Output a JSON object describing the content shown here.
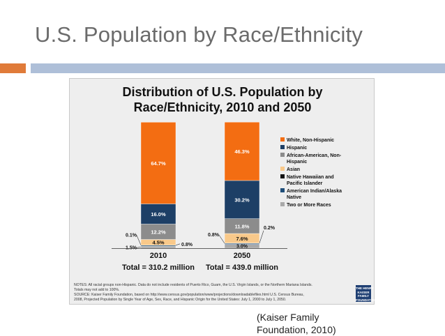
{
  "slide": {
    "title": "U.S. Population by Race/Ethnicity",
    "caption_line1": "(Kaiser Family",
    "caption_line2": "Foundation, 2010)"
  },
  "colors": {
    "title_gray": "#6b6b6b",
    "accent_orange": "#e07b39",
    "accent_blue": "#aebfd8"
  },
  "chart_data": {
    "type": "bar",
    "stacked": true,
    "title_line1": "Distribution of U.S. Population by",
    "title_line2": "Race/Ethnicity, 2010 and 2050",
    "categories": [
      "2010",
      "2050"
    ],
    "totals": [
      "Total = 310.2 million",
      "Total = 439.0 million"
    ],
    "ylim": [
      0,
      100
    ],
    "series": [
      {
        "name": "Two or More Races",
        "color": "#a9a9a9",
        "values": [
          1.5,
          3.0
        ],
        "labels": [
          "1.5%",
          "3.0%"
        ]
      },
      {
        "name": "American Indian/Alaska Native",
        "color": "#1f4e79",
        "values": [
          0.8,
          0.8
        ],
        "labels": [
          "0.8%",
          "0.8%"
        ]
      },
      {
        "name": "Native Hawaiian and Pacific Islander",
        "color": "#111111",
        "values": [
          0.1,
          0.2
        ],
        "labels": [
          "0.1%",
          "0.2%"
        ]
      },
      {
        "name": "Asian",
        "color": "#f9c98a",
        "values": [
          4.5,
          7.6
        ],
        "labels": [
          "4.5%",
          "7.6%"
        ]
      },
      {
        "name": "African-American, Non-Hispanic",
        "color": "#8c8c8c",
        "values": [
          12.2,
          11.8
        ],
        "labels": [
          "12.2%",
          "11.8%"
        ]
      },
      {
        "name": "Hispanic",
        "color": "#1d3f66",
        "values": [
          16.0,
          30.2
        ],
        "labels": [
          "16.0%",
          "30.2%"
        ]
      },
      {
        "name": "White, Non-Hispanic",
        "color": "#f36d12",
        "values": [
          64.7,
          46.3
        ],
        "labels": [
          "64.7%",
          "46.3%"
        ]
      }
    ],
    "legend": [
      {
        "label": "White, Non-Hispanic",
        "color": "#f36d12"
      },
      {
        "label": "Hispanic",
        "color": "#1d3f66"
      },
      {
        "label": "African-American, Non-",
        "label2": "Hispanic",
        "color": "#8c8c8c"
      },
      {
        "label": "Asian",
        "color": "#f9c98a"
      },
      {
        "label": "Native Hawaiian and",
        "label2": "Pacific Islander",
        "color": "#111111"
      },
      {
        "label": "American Indian/Alaska",
        "label2": "Native",
        "color": "#1f4e79"
      },
      {
        "label": "Two or More Races",
        "color": "#a9a9a9"
      }
    ],
    "legend_position": "right",
    "notes": [
      "NOTES: All racial groups non-Hispanic.  Data do not include residents of Puerto Rico, Guam, the U.S. Virgin Islands, or the Northern Mariana Islands.",
      "Totals may not add to 100%.",
      "SOURCE: Kaiser Family Foundation,  based on http://www.census.gov/population/www/projections/downloadablefiles.html  U.S. Census Bureau,",
      "2008, Projected Population by Single Year of Age, Sex, Race, and Hispanic Origin for the United States: July 1, 2000 to July 1, 2050."
    ],
    "logo_lines": [
      "THE HENRY J.",
      "KAISER",
      "FAMILY",
      "FOUNDATION"
    ]
  }
}
